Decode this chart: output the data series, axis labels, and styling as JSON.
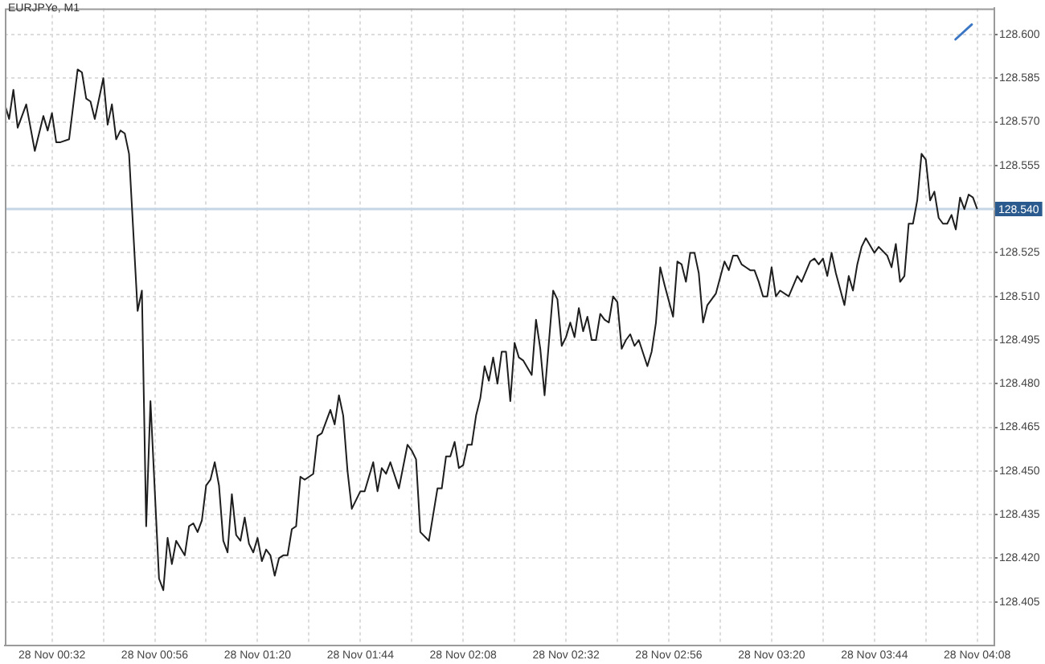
{
  "chart_data": {
    "type": "line",
    "title": "EURJPYe, M1",
    "color": "#1e1e1e",
    "x": [
      "--11-28T00:21",
      "--11-28T00:22",
      "--11-28T00:23",
      "--11-28T00:24",
      "--11-28T00:26",
      "--11-28T00:28",
      "--11-28T00:30",
      "--11-28T00:31",
      "--11-28T00:32",
      "--11-28T00:33",
      "--11-28T00:34",
      "--11-28T00:36",
      "--11-28T00:38",
      "--11-28T00:39",
      "--11-28T00:40",
      "--11-28T00:41",
      "--11-28T00:42",
      "--11-28T00:44",
      "--11-28T00:45",
      "--11-28T00:46",
      "--11-28T00:47",
      "--11-28T00:48",
      "--11-28T00:49",
      "--11-28T00:50",
      "--11-28T00:52",
      "--11-28T00:53",
      "--11-28T00:54",
      "--11-28T00:55",
      "--11-28T00:57",
      "--11-28T00:58",
      "--11-28T00:59",
      "--11-28T01:00",
      "--11-28T01:01",
      "--11-28T01:03",
      "--11-28T01:04",
      "--11-28T01:05",
      "--11-28T01:06",
      "--11-28T01:07",
      "--11-28T01:08",
      "--11-28T01:09",
      "--11-28T01:10",
      "--11-28T01:11",
      "--11-28T01:12",
      "--11-28T01:13",
      "--11-28T01:14",
      "--11-28T01:15",
      "--11-28T01:16",
      "--11-28T01:17",
      "--11-28T01:18",
      "--11-28T01:19",
      "--11-28T01:20",
      "--11-28T01:21",
      "--11-28T01:22",
      "--11-28T01:23",
      "--11-28T01:24",
      "--11-28T01:25",
      "--11-28T01:26",
      "--11-28T01:27",
      "--11-28T01:28",
      "--11-28T01:29",
      "--11-28T01:30",
      "--11-28T01:31",
      "--11-28T01:33",
      "--11-28T01:34",
      "--11-28T01:35",
      "--11-28T01:37",
      "--11-28T01:38",
      "--11-28T01:39",
      "--11-28T01:40",
      "--11-28T01:41",
      "--11-28T01:42",
      "--11-28T01:44",
      "--11-28T01:45",
      "--11-28T01:47",
      "--11-28T01:48",
      "--11-28T01:49",
      "--11-28T01:50",
      "--11-28T01:51",
      "--11-28T01:53",
      "--11-28T01:55",
      "--11-28T01:56",
      "--11-28T01:57",
      "--11-28T01:58",
      "--11-28T02:00",
      "--11-28T02:02",
      "--11-28T02:03",
      "--11-28T02:04",
      "--11-28T02:05",
      "--11-28T02:06",
      "--11-28T02:07",
      "--11-28T02:08",
      "--11-28T02:09",
      "--11-28T02:10",
      "--11-28T02:11",
      "--11-28T02:12",
      "--11-28T02:13",
      "--11-28T02:14",
      "--11-28T02:15",
      "--11-28T02:16",
      "--11-28T02:17",
      "--11-28T02:18",
      "--11-28T02:19",
      "--11-28T02:20",
      "--11-28T02:21",
      "--11-28T02:22",
      "--11-28T02:24",
      "--11-28T02:25",
      "--11-28T02:26",
      "--11-28T02:27",
      "--11-28T02:29",
      "--11-28T02:30",
      "--11-28T02:31",
      "--11-28T02:32",
      "--11-28T02:33",
      "--11-28T02:34",
      "--11-28T02:35",
      "--11-28T02:36",
      "--11-28T02:37",
      "--11-28T02:38",
      "--11-28T02:39",
      "--11-28T02:40",
      "--11-28T02:41",
      "--11-28T02:42",
      "--11-28T02:43",
      "--11-28T02:44",
      "--11-28T02:45",
      "--11-28T02:46",
      "--11-28T02:47",
      "--11-28T02:48",
      "--11-28T02:49",
      "--11-28T02:51",
      "--11-28T02:52",
      "--11-28T02:53",
      "--11-28T02:54",
      "--11-28T02:55",
      "--11-28T02:57",
      "--11-28T02:58",
      "--11-28T02:59",
      "--11-28T03:00",
      "--11-28T03:01",
      "--11-28T03:02",
      "--11-28T03:03",
      "--11-28T03:04",
      "--11-28T03:05",
      "--11-28T03:07",
      "--11-28T03:09",
      "--11-28T03:10",
      "--11-28T03:11",
      "--11-28T03:12",
      "--11-28T03:13",
      "--11-28T03:14",
      "--11-28T03:15",
      "--11-28T03:16",
      "--11-28T03:17",
      "--11-28T03:18",
      "--11-28T03:19",
      "--11-28T03:20",
      "--11-28T03:21",
      "--11-28T03:22",
      "--11-28T03:24",
      "--11-28T03:26",
      "--11-28T03:27",
      "--11-28T03:29",
      "--11-28T03:30",
      "--11-28T03:31",
      "--11-28T03:32",
      "--11-28T03:33",
      "--11-28T03:34",
      "--11-28T03:35",
      "--11-28T03:37",
      "--11-28T03:38",
      "--11-28T03:39",
      "--11-28T03:40",
      "--11-28T03:41",
      "--11-28T03:42",
      "--11-28T03:44",
      "--11-28T03:45",
      "--11-28T03:47",
      "--11-28T03:48",
      "--11-28T03:49",
      "--11-28T03:50",
      "--11-28T03:51",
      "--11-28T03:52",
      "--11-28T03:53",
      "--11-28T03:54",
      "--11-28T03:55",
      "--11-28T03:56",
      "--11-28T03:57",
      "--11-28T03:58",
      "--11-28T03:59",
      "--11-28T04:00",
      "--11-28T04:01",
      "--11-28T04:02",
      "--11-28T04:03",
      "--11-28T04:04",
      "--11-28T04:05",
      "--11-28T04:06",
      "--11-28T04:07",
      "--11-28T04:08"
    ],
    "values": [
      128.576,
      128.571,
      128.581,
      128.568,
      128.576,
      128.56,
      128.572,
      128.567,
      128.573,
      128.563,
      128.563,
      128.564,
      128.588,
      128.587,
      128.578,
      128.577,
      128.571,
      128.585,
      128.569,
      128.576,
      128.564,
      128.567,
      128.566,
      128.559,
      128.505,
      128.512,
      128.431,
      128.474,
      128.413,
      128.409,
      128.427,
      128.418,
      128.426,
      128.421,
      128.431,
      128.432,
      128.429,
      128.433,
      128.445,
      128.447,
      128.453,
      128.445,
      128.426,
      128.422,
      128.442,
      128.428,
      128.426,
      128.434,
      128.425,
      128.422,
      128.427,
      128.419,
      128.423,
      128.421,
      128.414,
      128.42,
      128.421,
      128.421,
      128.43,
      128.431,
      128.448,
      128.447,
      128.449,
      128.462,
      128.463,
      128.471,
      128.466,
      128.476,
      128.469,
      128.45,
      128.437,
      128.443,
      128.443,
      128.453,
      128.443,
      128.451,
      128.449,
      128.453,
      128.444,
      128.459,
      128.457,
      128.454,
      128.429,
      128.426,
      128.444,
      128.444,
      128.455,
      128.455,
      128.46,
      128.451,
      128.452,
      128.459,
      128.459,
      128.469,
      128.475,
      128.486,
      128.481,
      128.489,
      128.48,
      128.491,
      128.491,
      128.474,
      128.494,
      128.489,
      128.488,
      128.483,
      128.502,
      128.492,
      128.476,
      128.512,
      128.509,
      128.493,
      128.496,
      128.501,
      128.496,
      128.506,
      128.498,
      128.503,
      128.495,
      128.495,
      128.504,
      128.502,
      128.501,
      128.51,
      128.508,
      128.492,
      128.495,
      128.497,
      128.493,
      128.495,
      128.486,
      128.491,
      128.501,
      128.52,
      128.514,
      128.503,
      128.522,
      128.521,
      128.515,
      128.525,
      128.525,
      128.518,
      128.501,
      128.507,
      128.511,
      128.522,
      128.519,
      128.524,
      128.524,
      128.521,
      128.52,
      128.519,
      128.519,
      128.515,
      128.51,
      128.51,
      128.52,
      128.51,
      128.512,
      128.51,
      128.517,
      128.515,
      128.522,
      128.523,
      128.521,
      128.523,
      128.517,
      128.525,
      128.518,
      128.507,
      128.517,
      128.512,
      128.521,
      128.527,
      128.53,
      128.525,
      128.527,
      128.524,
      128.52,
      128.528,
      128.515,
      128.517,
      128.535,
      128.535,
      128.543,
      128.559,
      128.557,
      128.543,
      128.546,
      128.537,
      128.535,
      128.535,
      128.538,
      128.533,
      128.544,
      128.54,
      128.545,
      128.544,
      128.54
    ],
    "xlim": [
      "--11-28T00:21",
      "--11-28T04:12"
    ],
    "xticks": [
      {
        "value": "--11-28T00:32",
        "label": "28 Nov 00:32"
      },
      {
        "value": "--11-28T00:44",
        "label": null
      },
      {
        "value": "--11-28T00:56",
        "label": "28 Nov 00:56"
      },
      {
        "value": "--11-28T01:08",
        "label": null
      },
      {
        "value": "--11-28T01:20",
        "label": "28 Nov 01:20"
      },
      {
        "value": "--11-28T01:32",
        "label": null
      },
      {
        "value": "--11-28T01:44",
        "label": "28 Nov 01:44"
      },
      {
        "value": "--11-28T01:56",
        "label": null
      },
      {
        "value": "--11-28T02:08",
        "label": "28 Nov 02:08"
      },
      {
        "value": "--11-28T02:20",
        "label": null
      },
      {
        "value": "--11-28T02:32",
        "label": "28 Nov 02:32"
      },
      {
        "value": "--11-28T02:44",
        "label": null
      },
      {
        "value": "--11-28T02:56",
        "label": "28 Nov 02:56"
      },
      {
        "value": "--11-28T03:08",
        "label": null
      },
      {
        "value": "--11-28T03:20",
        "label": "28 Nov 03:20"
      },
      {
        "value": "--11-28T03:32",
        "label": null
      },
      {
        "value": "--11-28T03:44",
        "label": "28 Nov 03:44"
      },
      {
        "value": "--11-28T03:56",
        "label": null
      },
      {
        "value": "--11-28T04:08",
        "label": "28 Nov 04:08"
      }
    ],
    "ylim": [
      128.39,
      128.609
    ],
    "yticks": [
      128.405,
      {
        "value": 128.42,
        "label": "128.420"
      },
      128.435,
      {
        "value": 128.45,
        "label": "128.450"
      },
      128.465,
      {
        "value": 128.48,
        "label": "128.480"
      },
      128.495,
      {
        "value": 128.51,
        "label": "128.510"
      },
      128.525,
      {
        "value": 128.54,
        "label": null
      },
      128.555,
      {
        "value": 128.57,
        "label": "128.570"
      },
      128.585,
      {
        "value": 128.6,
        "label": "128.600"
      }
    ],
    "grid": true,
    "ref_lines": [
      {
        "axis": "y",
        "value": 128.54,
        "label": "128.540",
        "color": "#c6d6e6"
      }
    ]
  }
}
